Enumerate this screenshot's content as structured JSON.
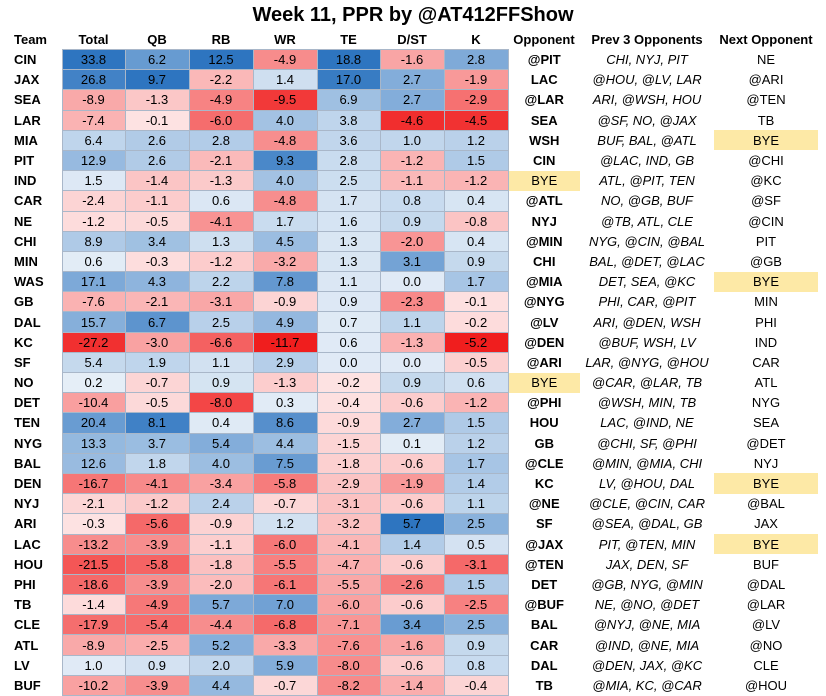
{
  "chart_data": {
    "type": "table",
    "title": "Week 11, PPR by @AT412FFShow",
    "columns": [
      "Team",
      "Total",
      "QB",
      "RB",
      "WR",
      "TE",
      "D/ST",
      "K",
      "Opponent",
      "Prev  3 Opponents",
      "Next Opponent"
    ],
    "rows": [
      {
        "team": "CIN",
        "values": [
          "33.8",
          "6.2",
          "12.5",
          "-4.9",
          "18.8",
          "-1.6",
          "2.8"
        ],
        "opponent": "@PIT",
        "prev3": "CHI, NYJ, PIT",
        "next": "NE"
      },
      {
        "team": "JAX",
        "values": [
          "26.8",
          "9.7",
          "-2.2",
          "1.4",
          "17.0",
          "2.7",
          "-1.9"
        ],
        "opponent": "LAC",
        "prev3": "@HOU, @LV, LAR",
        "next": "@ARI"
      },
      {
        "team": "SEA",
        "values": [
          "-8.9",
          "-1.3",
          "-4.9",
          "-9.5",
          "6.9",
          "2.7",
          "-2.9"
        ],
        "opponent": "@LAR",
        "prev3": "ARI, @WSH, HOU",
        "next": "@TEN"
      },
      {
        "team": "LAR",
        "values": [
          "-7.4",
          "-0.1",
          "-6.0",
          "4.0",
          "3.8",
          "-4.6",
          "-4.5"
        ],
        "opponent": "SEA",
        "prev3": "@SF, NO, @JAX",
        "next": "TB"
      },
      {
        "team": "MIA",
        "values": [
          "6.4",
          "2.6",
          "2.8",
          "-4.8",
          "3.6",
          "1.0",
          "1.2"
        ],
        "opponent": "WSH",
        "prev3": "BUF, BAL, @ATL",
        "next": "BYE"
      },
      {
        "team": "PIT",
        "values": [
          "12.9",
          "2.6",
          "-2.1",
          "9.3",
          "2.8",
          "-1.2",
          "1.5"
        ],
        "opponent": "CIN",
        "prev3": "@LAC, IND, GB",
        "next": "@CHI"
      },
      {
        "team": "IND",
        "values": [
          "1.5",
          "-1.4",
          "-1.3",
          "4.0",
          "2.5",
          "-1.1",
          "-1.2"
        ],
        "opponent": "BYE",
        "prev3": "ATL, @PIT, TEN",
        "next": "@KC"
      },
      {
        "team": "CAR",
        "values": [
          "-2.4",
          "-1.1",
          "0.6",
          "-4.8",
          "1.7",
          "0.8",
          "0.4"
        ],
        "opponent": "@ATL",
        "prev3": "NO, @GB, BUF",
        "next": "@SF"
      },
      {
        "team": "NE",
        "values": [
          "-1.2",
          "-0.5",
          "-4.1",
          "1.7",
          "1.6",
          "0.9",
          "-0.8"
        ],
        "opponent": "NYJ",
        "prev3": "@TB, ATL, CLE",
        "next": "@CIN"
      },
      {
        "team": "CHI",
        "values": [
          "8.9",
          "3.4",
          "1.3",
          "4.5",
          "1.3",
          "-2.0",
          "0.4"
        ],
        "opponent": "@MIN",
        "prev3": "NYG, @CIN, @BAL",
        "next": "PIT"
      },
      {
        "team": "MIN",
        "values": [
          "0.6",
          "-0.3",
          "-1.2",
          "-3.2",
          "1.3",
          "3.1",
          "0.9"
        ],
        "opponent": "CHI",
        "prev3": "BAL, @DET, @LAC",
        "next": "@GB"
      },
      {
        "team": "WAS",
        "values": [
          "17.1",
          "4.3",
          "2.2",
          "7.8",
          "1.1",
          "0.0",
          "1.7"
        ],
        "opponent": "@MIA",
        "prev3": "DET, SEA, @KC",
        "next": "BYE"
      },
      {
        "team": "GB",
        "values": [
          "-7.6",
          "-2.1",
          "-3.1",
          "-0.9",
          "0.9",
          "-2.3",
          "-0.1"
        ],
        "opponent": "@NYG",
        "prev3": "PHI, CAR, @PIT",
        "next": "MIN"
      },
      {
        "team": "DAL",
        "values": [
          "15.7",
          "6.7",
          "2.5",
          "4.9",
          "0.7",
          "1.1",
          "-0.2"
        ],
        "opponent": "@LV",
        "prev3": "ARI, @DEN, WSH",
        "next": "PHI"
      },
      {
        "team": "KC",
        "values": [
          "-27.2",
          "-3.0",
          "-6.6",
          "-11.7",
          "0.6",
          "-1.3",
          "-5.2"
        ],
        "opponent": "@DEN",
        "prev3": "@BUF, WSH, LV",
        "next": "IND"
      },
      {
        "team": "SF",
        "values": [
          "5.4",
          "1.9",
          "1.1",
          "2.9",
          "0.0",
          "0.0",
          "-0.5"
        ],
        "opponent": "@ARI",
        "prev3": "LAR, @NYG, @HOU",
        "next": "CAR"
      },
      {
        "team": "NO",
        "values": [
          "0.2",
          "-0.7",
          "0.9",
          "-1.3",
          "-0.2",
          "0.9",
          "0.6"
        ],
        "opponent": "BYE",
        "prev3": "@CAR, @LAR, TB",
        "next": "ATL"
      },
      {
        "team": "DET",
        "values": [
          "-10.4",
          "-0.5",
          "-8.0",
          "0.3",
          "-0.4",
          "-0.6",
          "-1.2"
        ],
        "opponent": "@PHI",
        "prev3": "@WSH, MIN, TB",
        "next": "NYG"
      },
      {
        "team": "TEN",
        "values": [
          "20.4",
          "8.1",
          "0.4",
          "8.6",
          "-0.9",
          "2.7",
          "1.5"
        ],
        "opponent": "HOU",
        "prev3": "LAC, @IND, NE",
        "next": "SEA"
      },
      {
        "team": "NYG",
        "values": [
          "13.3",
          "3.7",
          "5.4",
          "4.4",
          "-1.5",
          "0.1",
          "1.2"
        ],
        "opponent": "GB",
        "prev3": "@CHI, SF, @PHI",
        "next": "@DET"
      },
      {
        "team": "BAL",
        "values": [
          "12.6",
          "1.8",
          "4.0",
          "7.5",
          "-1.8",
          "-0.6",
          "1.7"
        ],
        "opponent": "@CLE",
        "prev3": "@MIN, @MIA, CHI",
        "next": "NYJ"
      },
      {
        "team": "DEN",
        "values": [
          "-16.7",
          "-4.1",
          "-3.4",
          "-5.8",
          "-2.9",
          "-1.9",
          "1.4"
        ],
        "opponent": "KC",
        "prev3": "LV, @HOU, DAL",
        "next": "BYE"
      },
      {
        "team": "NYJ",
        "values": [
          "-2.1",
          "-1.2",
          "2.4",
          "-0.7",
          "-3.1",
          "-0.6",
          "1.1"
        ],
        "opponent": "@NE",
        "prev3": "@CLE, @CIN, CAR",
        "next": "@BAL"
      },
      {
        "team": "ARI",
        "values": [
          "-0.3",
          "-5.6",
          "-0.9",
          "1.2",
          "-3.2",
          "5.7",
          "2.5"
        ],
        "opponent": "SF",
        "prev3": "@SEA, @DAL, GB",
        "next": "JAX"
      },
      {
        "team": "LAC",
        "values": [
          "-13.2",
          "-3.9",
          "-1.1",
          "-6.0",
          "-4.1",
          "1.4",
          "0.5"
        ],
        "opponent": "@JAX",
        "prev3": "PIT, @TEN, MIN",
        "next": "BYE"
      },
      {
        "team": "HOU",
        "values": [
          "-21.5",
          "-5.8",
          "-1.8",
          "-5.5",
          "-4.7",
          "-0.6",
          "-3.1"
        ],
        "opponent": "@TEN",
        "prev3": "JAX, DEN, SF",
        "next": "BUF"
      },
      {
        "team": "PHI",
        "values": [
          "-18.6",
          "-3.9",
          "-2.0",
          "-6.1",
          "-5.5",
          "-2.6",
          "1.5"
        ],
        "opponent": "DET",
        "prev3": "@GB, NYG, @MIN",
        "next": "@DAL"
      },
      {
        "team": "TB",
        "values": [
          "-1.4",
          "-4.9",
          "5.7",
          "7.0",
          "-6.0",
          "-0.6",
          "-2.5"
        ],
        "opponent": "@BUF",
        "prev3": "NE, @NO, @DET",
        "next": "@LAR"
      },
      {
        "team": "CLE",
        "values": [
          "-17.9",
          "-5.4",
          "-4.4",
          "-6.8",
          "-7.1",
          "3.4",
          "2.5"
        ],
        "opponent": "BAL",
        "prev3": "@NYJ, @NE, MIA",
        "next": "@LV"
      },
      {
        "team": "ATL",
        "values": [
          "-8.9",
          "-2.5",
          "5.2",
          "-3.3",
          "-7.6",
          "-1.6",
          "0.9"
        ],
        "opponent": "CAR",
        "prev3": "@IND, @NE, MIA",
        "next": "@NO"
      },
      {
        "team": "LV",
        "values": [
          "1.0",
          "0.9",
          "2.0",
          "5.9",
          "-8.0",
          "-0.6",
          "0.8"
        ],
        "opponent": "DAL",
        "prev3": "@DEN, JAX, @KC",
        "next": "CLE"
      },
      {
        "team": "BUF",
        "values": [
          "-10.2",
          "-3.9",
          "4.4",
          "-0.7",
          "-8.2",
          "-1.4",
          "-0.4"
        ],
        "opponent": "TB",
        "prev3": "@MIA, KC, @CAR",
        "next": "@HOU"
      }
    ],
    "color_scale": {
      "positive": "#2e75c0",
      "neutral": "#ffffff",
      "negative": "#f01e1e"
    },
    "bye_highlight": "#fde9a6"
  }
}
